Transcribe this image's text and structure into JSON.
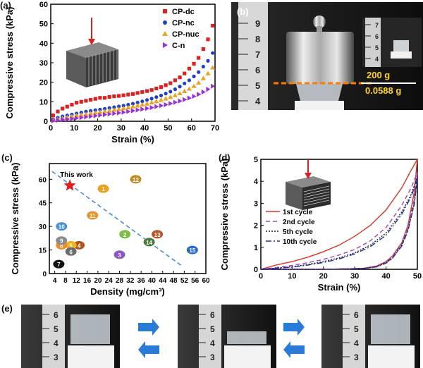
{
  "panels": {
    "a": {
      "label": "(a)"
    },
    "b": {
      "label": "(b)",
      "weight_label": "200 g",
      "sample_label": "0.0588 g"
    },
    "c": {
      "label": "(c)"
    },
    "d": {
      "label": "(d)"
    },
    "e": {
      "label": "(e)"
    }
  },
  "colors": {
    "CP-dc": "#e02020",
    "CP-nc": "#1f3fd0",
    "CP-nuc": "#f0a020",
    "C-n": "#9a30d8"
  },
  "chart_data": [
    {
      "type": "scatter",
      "xlabel": "Strain (%)",
      "ylabel": "Compressive stress (kPa)",
      "xlim": [
        0,
        70
      ],
      "ylim": [
        0,
        60
      ],
      "xticks": [
        0,
        10,
        20,
        30,
        40,
        50,
        60,
        70
      ],
      "yticks": [
        0,
        10,
        20,
        30,
        40,
        50,
        60
      ],
      "legend": "top-right",
      "series": [
        {
          "name": "CP-dc",
          "marker": "square",
          "x": [
            1,
            3,
            5,
            7,
            9,
            11,
            13,
            15,
            17,
            19,
            21,
            23,
            25,
            27,
            29,
            31,
            33,
            35,
            37,
            39,
            41,
            43,
            45,
            47,
            49,
            51,
            53,
            55,
            57,
            59,
            61,
            63,
            65,
            67,
            69
          ],
          "y": [
            3,
            5,
            6.5,
            7.5,
            8.5,
            9.5,
            10,
            10.5,
            11,
            11.5,
            12,
            12,
            12.5,
            12.8,
            13,
            13.3,
            13.7,
            14,
            14.5,
            15,
            15.5,
            16,
            16.8,
            17.5,
            18.5,
            19.5,
            21,
            22.5,
            24.5,
            27,
            29.5,
            32.5,
            37,
            42,
            49
          ]
        },
        {
          "name": "CP-nc",
          "marker": "circle",
          "x": [
            1,
            3,
            5,
            7,
            9,
            11,
            13,
            15,
            17,
            19,
            21,
            23,
            25,
            27,
            29,
            31,
            33,
            35,
            37,
            39,
            41,
            43,
            45,
            47,
            49,
            51,
            53,
            55,
            57,
            59,
            61,
            63,
            65,
            67,
            69
          ],
          "y": [
            1,
            1.8,
            2.5,
            3,
            3.5,
            4,
            4.5,
            5,
            5.3,
            5.7,
            6,
            6.4,
            6.8,
            7.2,
            7.6,
            8,
            8.5,
            9,
            9.6,
            10.2,
            10.9,
            11.6,
            12.4,
            13.2,
            14.2,
            15.2,
            16.4,
            17.8,
            19.4,
            21,
            23,
            25.2,
            28,
            31,
            35
          ]
        },
        {
          "name": "CP-nuc",
          "marker": "triangle-up",
          "x": [
            1,
            3,
            5,
            7,
            9,
            11,
            13,
            15,
            17,
            19,
            21,
            23,
            25,
            27,
            29,
            31,
            33,
            35,
            37,
            39,
            41,
            43,
            45,
            47,
            49,
            51,
            53,
            55,
            57,
            59,
            61,
            63,
            65,
            67,
            69
          ],
          "y": [
            0.5,
            1,
            1.5,
            2,
            2.5,
            3,
            3.3,
            3.6,
            4,
            4.3,
            4.7,
            5,
            5.4,
            5.8,
            6.2,
            6.6,
            7,
            7.5,
            8,
            8.5,
            9,
            9.6,
            10.2,
            10.9,
            11.6,
            12.4,
            13.3,
            14.3,
            15.4,
            16.6,
            18,
            19.7,
            22,
            24.5,
            27.5
          ]
        },
        {
          "name": "C-n",
          "marker": "triangle-right",
          "x": [
            1,
            3,
            5,
            7,
            9,
            11,
            13,
            15,
            17,
            19,
            21,
            23,
            25,
            27,
            29,
            31,
            33,
            35,
            37,
            39,
            41,
            43,
            45,
            47,
            49,
            51,
            53,
            55,
            57,
            59,
            61,
            63,
            65,
            67,
            69
          ],
          "y": [
            0.2,
            0.5,
            0.8,
            1,
            1.3,
            1.6,
            1.9,
            2.2,
            2.5,
            2.8,
            3.1,
            3.4,
            3.7,
            4,
            4.3,
            4.6,
            5,
            5.4,
            5.8,
            6.2,
            6.6,
            7,
            7.5,
            8,
            8.5,
            9.1,
            9.7,
            10.4,
            11.1,
            11.9,
            12.8,
            13.8,
            15,
            16.4,
            18
          ]
        }
      ]
    },
    {
      "type": "scatter",
      "xlabel": "Density (mg/cm³)",
      "ylabel": "Compressive stress (kPa)",
      "xlim": [
        2,
        60
      ],
      "ylim": [
        0,
        70
      ],
      "xticks": [
        4,
        8,
        12,
        16,
        20,
        24,
        28,
        32,
        36,
        40,
        44,
        48,
        52,
        56,
        60
      ],
      "yticks": [
        0,
        15,
        30,
        45,
        60
      ],
      "annotation": "This work",
      "this_work": {
        "x": 9.6,
        "y": 56
      },
      "points": [
        {
          "label": "1",
          "x": 22,
          "y": 54,
          "color": "#e8a21e"
        },
        {
          "label": "2",
          "x": 30,
          "y": 25,
          "color": "#77c043"
        },
        {
          "label": "3",
          "x": 28,
          "y": 12,
          "color": "#8e57c8"
        },
        {
          "label": "4",
          "x": 13,
          "y": 18,
          "color": "#b0531e"
        },
        {
          "label": "5",
          "x": 10,
          "y": 18,
          "color": "#f2b21c"
        },
        {
          "label": "6",
          "x": 10,
          "y": 14,
          "color": "#6b6b6b"
        },
        {
          "label": "7",
          "x": 5.5,
          "y": 6,
          "color": "#111111"
        },
        {
          "label": "8",
          "x": 6.5,
          "y": 18,
          "color": "#f08a2a"
        },
        {
          "label": "9",
          "x": 6.5,
          "y": 21,
          "color": "#8c8c8c"
        },
        {
          "label": "10",
          "x": 6.5,
          "y": 30,
          "color": "#4a90d9"
        },
        {
          "label": "11",
          "x": 18,
          "y": 37,
          "color": "#f0902a"
        },
        {
          "label": "12",
          "x": 34,
          "y": 60,
          "color": "#c48a2a"
        },
        {
          "label": "13",
          "x": 42,
          "y": 25,
          "color": "#b8552a"
        },
        {
          "label": "14",
          "x": 39,
          "y": 20,
          "color": "#4a7a3a"
        },
        {
          "label": "15",
          "x": 55,
          "y": 15,
          "color": "#2a6ad0"
        }
      ],
      "trend": {
        "x": [
          3,
          51
        ],
        "y": [
          65,
          5
        ]
      }
    },
    {
      "type": "line",
      "xlabel": "Strain (%)",
      "ylabel": "Compressive stress (kPa)",
      "xlim": [
        0,
        50
      ],
      "ylim": [
        0,
        5
      ],
      "xticks": [
        0,
        10,
        20,
        30,
        40,
        50
      ],
      "yticks": [
        0,
        1,
        2,
        3,
        4,
        5
      ],
      "legend": "center-left",
      "series": [
        {
          "name": "1st cycle",
          "color": "#e03020",
          "dash": "",
          "load": {
            "x": [
              0,
              5,
              10,
              15,
              20,
              25,
              30,
              35,
              40,
              45,
              48,
              50
            ],
            "y": [
              0,
              0.2,
              0.35,
              0.55,
              0.8,
              1.1,
              1.5,
              2.0,
              2.7,
              3.7,
              4.5,
              5.0
            ]
          },
          "unload": {
            "x": [
              50,
              49,
              47,
              45,
              42,
              40,
              37,
              33,
              28,
              20,
              10,
              0
            ],
            "y": [
              5.0,
              3.5,
              2.0,
              1.2,
              0.6,
              0.35,
              0.15,
              0.05,
              0.02,
              0,
              0,
              0
            ]
          }
        },
        {
          "name": "2nd cycle",
          "color": "#a040c8",
          "dash": "6,4",
          "load": {
            "x": [
              0,
              5,
              10,
              15,
              20,
              25,
              30,
              35,
              40,
              45,
              48,
              50
            ],
            "y": [
              0,
              0.08,
              0.18,
              0.3,
              0.45,
              0.65,
              0.9,
              1.3,
              1.9,
              2.9,
              3.7,
              4.4
            ]
          },
          "unload": {
            "x": [
              50,
              49,
              47,
              45,
              42,
              40,
              37,
              33,
              28,
              20,
              10,
              0
            ],
            "y": [
              4.4,
              3.2,
              1.9,
              1.15,
              0.55,
              0.32,
              0.13,
              0.04,
              0.02,
              0,
              0,
              0
            ]
          }
        },
        {
          "name": "5th cycle",
          "color": "#222222",
          "dash": "2,2",
          "load": {
            "x": [
              0,
              5,
              10,
              15,
              20,
              25,
              30,
              35,
              40,
              45,
              48,
              50
            ],
            "y": [
              0,
              0.05,
              0.12,
              0.22,
              0.35,
              0.52,
              0.75,
              1.1,
              1.65,
              2.6,
              3.4,
              4.2
            ]
          },
          "unload": {
            "x": [
              50,
              49,
              47,
              45,
              42,
              40,
              37,
              33,
              28,
              20,
              10,
              0
            ],
            "y": [
              4.2,
              3.0,
              1.8,
              1.1,
              0.5,
              0.3,
              0.12,
              0.04,
              0.02,
              0,
              0,
              0
            ]
          }
        },
        {
          "name": "10th cycle",
          "color": "#2030a0",
          "dash": "8,3,2,3",
          "load": {
            "x": [
              0,
              5,
              10,
              15,
              20,
              25,
              30,
              35,
              40,
              45,
              48,
              50
            ],
            "y": [
              0,
              0.04,
              0.1,
              0.19,
              0.31,
              0.47,
              0.7,
              1.03,
              1.55,
              2.5,
              3.3,
              4.1
            ]
          },
          "unload": {
            "x": [
              50,
              49,
              47,
              45,
              42,
              40,
              37,
              33,
              28,
              20,
              10,
              0
            ],
            "y": [
              4.1,
              2.95,
              1.75,
              1.05,
              0.5,
              0.28,
              0.11,
              0.04,
              0.02,
              0,
              0,
              0
            ]
          }
        }
      ]
    }
  ],
  "ruler_marks_b": [
    "9",
    "8",
    "7",
    "6",
    "5",
    "4"
  ],
  "ruler_marks_b_small": [
    "7",
    "6",
    "5",
    "4"
  ],
  "ruler_marks_e": [
    "6",
    "5",
    "4",
    "3"
  ]
}
